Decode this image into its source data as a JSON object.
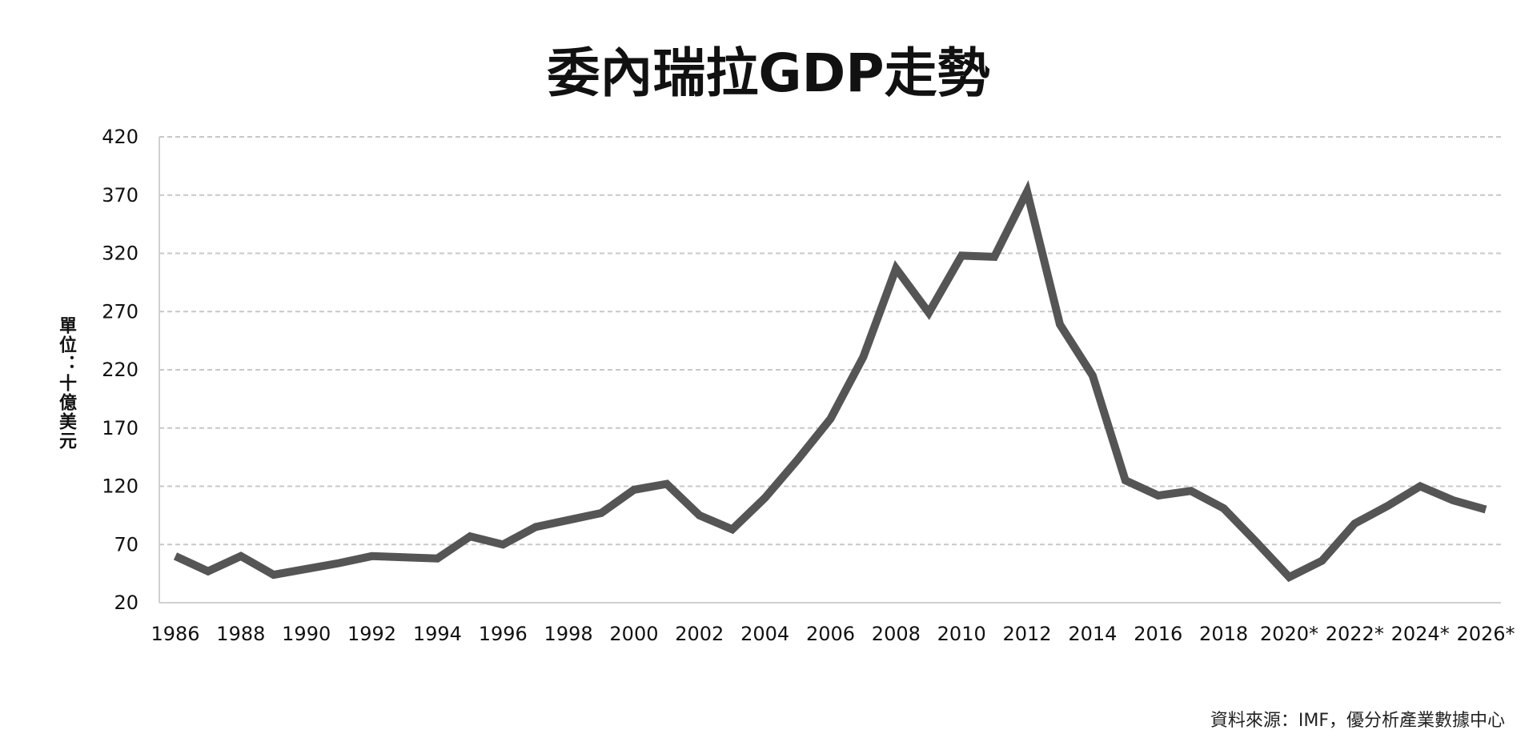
{
  "chart_data": {
    "type": "line",
    "title": "委內瑞拉GDP走勢",
    "ylabel": "單位：十億美元",
    "xlabel": "",
    "source": "資料來源：IMF，優分析產業數據中心",
    "ylim": [
      20,
      420
    ],
    "yticks": [
      20,
      70,
      120,
      170,
      220,
      270,
      320,
      370,
      420
    ],
    "grid": true,
    "grid_style": "dashed horizontal",
    "line_color": "#555555",
    "x": [
      1986,
      1987,
      1988,
      1989,
      1990,
      1991,
      1992,
      1993,
      1994,
      1995,
      1996,
      1997,
      1998,
      1999,
      2000,
      2001,
      2002,
      2003,
      2004,
      2005,
      2006,
      2007,
      2008,
      2009,
      2010,
      2011,
      2012,
      2013,
      2014,
      2015,
      2016,
      2017,
      2018,
      2019,
      2020,
      2021,
      2022,
      2023,
      2024,
      2025,
      2026
    ],
    "xtick_labels": [
      "1986",
      "1988",
      "1990",
      "1992",
      "1994",
      "1996",
      "1998",
      "2000",
      "2002",
      "2004",
      "2006",
      "2008",
      "2010",
      "2012",
      "2014",
      "2016",
      "2018",
      "2020*",
      "2022*",
      "2024*",
      "2026*"
    ],
    "values": [
      60,
      47,
      60,
      44,
      49,
      54,
      60,
      59,
      58,
      77,
      70,
      85,
      91,
      97,
      117,
      122,
      95,
      83,
      110,
      143,
      178,
      231,
      307,
      269,
      318,
      317,
      373,
      259,
      215,
      125,
      112,
      116,
      101,
      72,
      42,
      56,
      88,
      103,
      120,
      108,
      100
    ]
  }
}
